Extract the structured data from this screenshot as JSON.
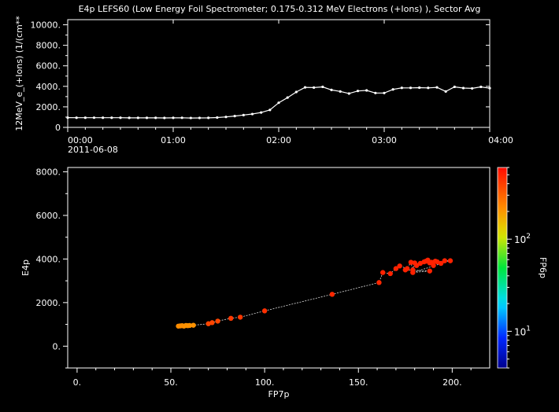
{
  "title": "E4p LEFS60 (Low Energy Foil Spectrometer; 0.175-0.312 MeV Electrons (+Ions) ), Sector Avg",
  "colors": {
    "background": "#000000",
    "foreground": "#ffffff",
    "line": "#ffffff"
  },
  "chart_data": [
    {
      "type": "line",
      "ylabel": "12MeV_e_(+Ions) (1/(cm**",
      "xlim": [
        "00:00",
        "04:00"
      ],
      "ylim": [
        0,
        10500
      ],
      "yticks": [
        "0",
        "2000.",
        "4000.",
        "6000.",
        "8000.",
        "10000."
      ],
      "ytick_values": [
        0,
        2000,
        4000,
        6000,
        8000,
        10000
      ],
      "xticks": [
        "00:00",
        "01:00",
        "02:00",
        "03:00",
        "04:00"
      ],
      "xtick_minutes": [
        0,
        60,
        120,
        180,
        240
      ],
      "date_label": "2011-06-08",
      "x_minutes": [
        0,
        5,
        10,
        15,
        20,
        25,
        30,
        35,
        40,
        45,
        50,
        55,
        60,
        65,
        70,
        75,
        80,
        85,
        90,
        95,
        100,
        105,
        110,
        115,
        120,
        125,
        130,
        135,
        140,
        145,
        150,
        155,
        160,
        165,
        170,
        175,
        180,
        185,
        190,
        195,
        200,
        205,
        210,
        215,
        220,
        225,
        230,
        235,
        240
      ],
      "values": [
        950,
        940,
        940,
        945,
        940,
        940,
        940,
        930,
        930,
        930,
        930,
        920,
        930,
        935,
        915,
        920,
        930,
        960,
        1020,
        1100,
        1200,
        1300,
        1450,
        1700,
        2400,
        2900,
        3450,
        3900,
        3880,
        3950,
        3650,
        3500,
        3300,
        3550,
        3600,
        3350,
        3350,
        3700,
        3850,
        3850,
        3870,
        3850,
        3900,
        3500,
        3950,
        3830,
        3800,
        3950,
        3820
      ]
    },
    {
      "type": "scatter",
      "xlabel": "FP7p",
      "ylabel": "E4p",
      "xlim": [
        -5,
        220
      ],
      "ylim": [
        -1000,
        8200
      ],
      "xticks": [
        "0.",
        "50.",
        "100.",
        "150.",
        "200."
      ],
      "xtick_values": [
        0,
        50,
        100,
        150,
        200
      ],
      "yticks": [
        "0.",
        "2000.",
        "4000.",
        "6000.",
        "8000."
      ],
      "ytick_values": [
        0,
        2000,
        4000,
        6000,
        8000
      ],
      "colorbar": {
        "label": "FP6p",
        "scale": "log",
        "range": [
          4,
          600
        ],
        "ticks": [
          "10",
          "10"
        ],
        "tick_exponents": [
          "1",
          "2"
        ],
        "tick_values": [
          10,
          100
        ]
      },
      "points": [
        {
          "x": 54,
          "y": 920,
          "c": 220
        },
        {
          "x": 55,
          "y": 930,
          "c": 220
        },
        {
          "x": 56,
          "y": 940,
          "c": 215
        },
        {
          "x": 57,
          "y": 920,
          "c": 215
        },
        {
          "x": 58,
          "y": 950,
          "c": 210
        },
        {
          "x": 59,
          "y": 940,
          "c": 210
        },
        {
          "x": 60,
          "y": 950,
          "c": 210
        },
        {
          "x": 62,
          "y": 960,
          "c": 210
        },
        {
          "x": 70,
          "y": 1030,
          "c": 380
        },
        {
          "x": 72,
          "y": 1080,
          "c": 380
        },
        {
          "x": 75,
          "y": 1150,
          "c": 380
        },
        {
          "x": 82,
          "y": 1280,
          "c": 420
        },
        {
          "x": 87,
          "y": 1330,
          "c": 420
        },
        {
          "x": 100,
          "y": 1620,
          "c": 450
        },
        {
          "x": 136,
          "y": 2380,
          "c": 480
        },
        {
          "x": 161,
          "y": 2920,
          "c": 480
        },
        {
          "x": 163,
          "y": 3380,
          "c": 500
        },
        {
          "x": 167,
          "y": 3330,
          "c": 500
        },
        {
          "x": 170,
          "y": 3560,
          "c": 500
        },
        {
          "x": 172,
          "y": 3680,
          "c": 500
        },
        {
          "x": 176,
          "y": 3560,
          "c": 500
        },
        {
          "x": 178,
          "y": 3850,
          "c": 500
        },
        {
          "x": 179,
          "y": 3500,
          "c": 500
        },
        {
          "x": 180,
          "y": 3820,
          "c": 500
        },
        {
          "x": 181,
          "y": 3700,
          "c": 500
        },
        {
          "x": 183,
          "y": 3800,
          "c": 500
        },
        {
          "x": 185,
          "y": 3870,
          "c": 500
        },
        {
          "x": 186,
          "y": 3900,
          "c": 500
        },
        {
          "x": 187,
          "y": 3950,
          "c": 500
        },
        {
          "x": 188,
          "y": 3820,
          "c": 500
        },
        {
          "x": 189,
          "y": 3850,
          "c": 500
        },
        {
          "x": 190,
          "y": 3700,
          "c": 500
        },
        {
          "x": 191,
          "y": 3900,
          "c": 500
        },
        {
          "x": 192,
          "y": 3870,
          "c": 500
        },
        {
          "x": 194,
          "y": 3800,
          "c": 500
        },
        {
          "x": 196,
          "y": 3920,
          "c": 500
        },
        {
          "x": 199,
          "y": 3920,
          "c": 500
        },
        {
          "x": 179,
          "y": 3380,
          "c": 500
        },
        {
          "x": 188,
          "y": 3450,
          "c": 500
        },
        {
          "x": 175,
          "y": 3500,
          "c": 500
        }
      ]
    }
  ]
}
